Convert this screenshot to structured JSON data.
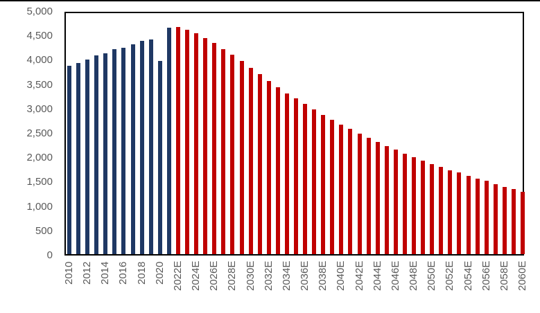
{
  "chart_data": {
    "type": "bar",
    "title": "",
    "xlabel": "",
    "ylabel": "",
    "ylim": [
      0,
      5000
    ],
    "yticks": [
      "0",
      "500",
      "1,000",
      "1,500",
      "2,000",
      "2,500",
      "3,000",
      "3,500",
      "4,000",
      "4,500",
      "5,000"
    ],
    "grid": false,
    "legend": null,
    "colors": {
      "actual": "#1F3864",
      "estimate": "#C00000"
    },
    "categories": [
      "2010",
      "2011",
      "2012",
      "2013",
      "2014",
      "2015",
      "2016",
      "2017",
      "2018",
      "2019",
      "2020",
      "2021",
      "2022E",
      "2023E",
      "2024E",
      "2025E",
      "2026E",
      "2027E",
      "2028E",
      "2029E",
      "2030E",
      "2031E",
      "2032E",
      "2033E",
      "2034E",
      "2035E",
      "2036E",
      "2037E",
      "2038E",
      "2039E",
      "2040E",
      "2041E",
      "2042E",
      "2043E",
      "2044E",
      "2045E",
      "2046E",
      "2047E",
      "2048E",
      "2049E",
      "2050E",
      "2051E",
      "2052E",
      "2053E",
      "2054E",
      "2055E",
      "2056E",
      "2057E",
      "2058E",
      "2059E",
      "2060E"
    ],
    "values": [
      3890,
      3950,
      4010,
      4100,
      4150,
      4230,
      4260,
      4330,
      4400,
      4430,
      3980,
      4670,
      4690,
      4630,
      4560,
      4460,
      4360,
      4230,
      4120,
      3980,
      3840,
      3710,
      3570,
      3440,
      3320,
      3210,
      3100,
      2980,
      2870,
      2770,
      2670,
      2590,
      2490,
      2400,
      2320,
      2230,
      2160,
      2070,
      2000,
      1930,
      1860,
      1800,
      1730,
      1680,
      1620,
      1560,
      1510,
      1450,
      1390,
      1350,
      1290
    ],
    "visible_xtick_labels": [
      "2010",
      "2012",
      "2014",
      "2016",
      "2018",
      "2020",
      "2022E",
      "2024E",
      "2026E",
      "2028E",
      "2030E",
      "2032E",
      "2034E",
      "2036E",
      "2038E",
      "2040E",
      "2042E",
      "2044E",
      "2046E",
      "2048E",
      "2050E",
      "2052E",
      "2054E",
      "2056E",
      "2058E",
      "2060E"
    ]
  }
}
